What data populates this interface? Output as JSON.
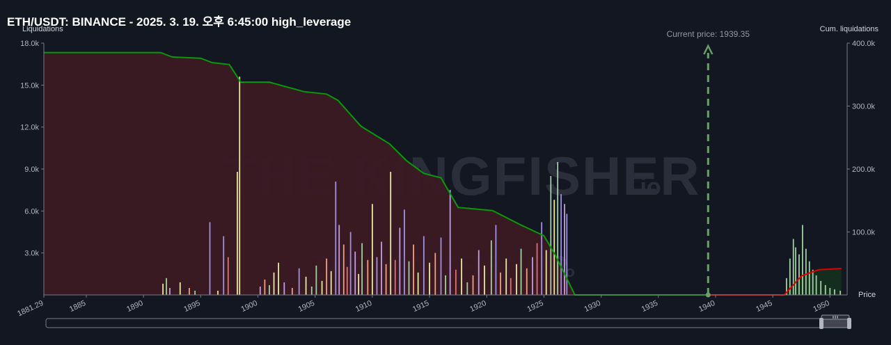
{
  "title": "ETH/USDT: BINANCE - 2025. 3. 19. 오후 6:45:00 high_leverage",
  "watermark": {
    "brand": "THE KINGFISHER",
    "suffix": ".io"
  },
  "chart_data": {
    "type": "bar",
    "ylabel_left": "Liquidations",
    "ylabel_right": "Cum. liquidations",
    "xlabel": "Price",
    "xlim": [
      1881.29,
      1951.5
    ],
    "ylim_left": [
      0,
      18000
    ],
    "ylim_right": [
      0,
      400000
    ],
    "y_ticks_left": [
      "3.0k",
      "6.0k",
      "9.0k",
      "12.0k",
      "15.0k",
      "18.0k"
    ],
    "y_ticks_right": [
      "100.0k",
      "200.0k",
      "300.0k",
      "400.0k"
    ],
    "x_ticks": [
      "1881.29",
      "1885",
      "1890",
      "1895",
      "1900",
      "1905",
      "1910",
      "1915",
      "1920",
      "1925",
      "1930",
      "1935",
      "1940",
      "1945",
      "1950"
    ],
    "current_price": {
      "label": "Current price: 1939.35",
      "value": 1939.35
    },
    "grid": false,
    "colors": {
      "short_line": "#089a08",
      "long_line": "#e00000",
      "short_fill": "#3b1a24",
      "long_fill": "#16301e",
      "current_price": "#6b9e6b"
    },
    "cum_short_line": [
      [
        1881.3,
        385000
      ],
      [
        1891.5,
        385000
      ],
      [
        1892.5,
        378000
      ],
      [
        1895.0,
        376000
      ],
      [
        1896.0,
        369000
      ],
      [
        1897.5,
        366000
      ],
      [
        1898.5,
        338000
      ],
      [
        1901.0,
        338000
      ],
      [
        1904.0,
        323000
      ],
      [
        1906.0,
        319000
      ],
      [
        1907.0,
        309000
      ],
      [
        1909.0,
        268000
      ],
      [
        1911.5,
        240000
      ],
      [
        1913.0,
        213000
      ],
      [
        1914.5,
        193000
      ],
      [
        1916.0,
        186000
      ],
      [
        1917.5,
        139000
      ],
      [
        1920.5,
        134000
      ],
      [
        1923.0,
        111000
      ],
      [
        1925.0,
        94000
      ],
      [
        1926.0,
        63000
      ],
      [
        1927.0,
        26000
      ],
      [
        1927.7,
        0
      ],
      [
        1939.35,
        0
      ]
    ],
    "cum_long_line": [
      [
        1939.35,
        0
      ],
      [
        1946.0,
        0
      ],
      [
        1947.5,
        30000
      ],
      [
        1949.0,
        40000
      ],
      [
        1951.0,
        42000
      ]
    ],
    "bars": [
      {
        "x": 1891.7,
        "y": 800,
        "c": "#e8e8a0"
      },
      {
        "x": 1892.0,
        "y": 1200,
        "c": "#a0d0a0"
      },
      {
        "x": 1892.3,
        "y": 500,
        "c": "#c0a0e0"
      },
      {
        "x": 1893.2,
        "y": 900,
        "c": "#e8e8a0"
      },
      {
        "x": 1894.0,
        "y": 500,
        "c": "#f0a080"
      },
      {
        "x": 1894.5,
        "y": 300,
        "c": "#a0d0a0"
      },
      {
        "x": 1895.8,
        "y": 5200,
        "c": "#a090e0"
      },
      {
        "x": 1896.5,
        "y": 300,
        "c": "#e8e8a0"
      },
      {
        "x": 1897.0,
        "y": 4200,
        "c": "#a090e0"
      },
      {
        "x": 1897.4,
        "y": 2700,
        "c": "#e07070"
      },
      {
        "x": 1898.2,
        "y": 8800,
        "c": "#e8e8a0"
      },
      {
        "x": 1898.4,
        "y": 15600,
        "c": "#e8e8a0"
      },
      {
        "x": 1900.2,
        "y": 600,
        "c": "#c0a0e0"
      },
      {
        "x": 1900.6,
        "y": 1100,
        "c": "#f0a080"
      },
      {
        "x": 1901.0,
        "y": 700,
        "c": "#a0d0a0"
      },
      {
        "x": 1901.4,
        "y": 1600,
        "c": "#e8e8a0"
      },
      {
        "x": 1901.8,
        "y": 2300,
        "c": "#e8e8a0"
      },
      {
        "x": 1902.3,
        "y": 900,
        "c": "#c0a0e0"
      },
      {
        "x": 1903.0,
        "y": 500,
        "c": "#f0a080"
      },
      {
        "x": 1903.6,
        "y": 1900,
        "c": "#a090e0"
      },
      {
        "x": 1904.2,
        "y": 1300,
        "c": "#e8e8a0"
      },
      {
        "x": 1904.7,
        "y": 600,
        "c": "#a0d0a0"
      },
      {
        "x": 1905.1,
        "y": 2100,
        "c": "#a0d0a0"
      },
      {
        "x": 1905.6,
        "y": 1000,
        "c": "#e8e8a0"
      },
      {
        "x": 1906.0,
        "y": 2600,
        "c": "#f0a080"
      },
      {
        "x": 1906.4,
        "y": 1700,
        "c": "#e8e8a0"
      },
      {
        "x": 1906.8,
        "y": 8100,
        "c": "#a090e0"
      },
      {
        "x": 1907.1,
        "y": 5000,
        "c": "#c0a0e0"
      },
      {
        "x": 1907.5,
        "y": 3600,
        "c": "#f0a080"
      },
      {
        "x": 1907.8,
        "y": 2000,
        "c": "#e07070"
      },
      {
        "x": 1908.1,
        "y": 4500,
        "c": "#a090e0"
      },
      {
        "x": 1908.5,
        "y": 3100,
        "c": "#c0a0e0"
      },
      {
        "x": 1908.8,
        "y": 1500,
        "c": "#e8e8a0"
      },
      {
        "x": 1909.1,
        "y": 3700,
        "c": "#a0d0a0"
      },
      {
        "x": 1909.6,
        "y": 2500,
        "c": "#f0a080"
      },
      {
        "x": 1910.0,
        "y": 6500,
        "c": "#e8e8a0"
      },
      {
        "x": 1910.4,
        "y": 2700,
        "c": "#a090e0"
      },
      {
        "x": 1910.8,
        "y": 3800,
        "c": "#c0a0e0"
      },
      {
        "x": 1911.2,
        "y": 2200,
        "c": "#f0a080"
      },
      {
        "x": 1911.6,
        "y": 8800,
        "c": "#e8e8a0"
      },
      {
        "x": 1912.0,
        "y": 2500,
        "c": "#e07070"
      },
      {
        "x": 1912.4,
        "y": 4800,
        "c": "#c0a0e0"
      },
      {
        "x": 1912.8,
        "y": 6100,
        "c": "#a090e0"
      },
      {
        "x": 1913.2,
        "y": 2400,
        "c": "#a0d0a0"
      },
      {
        "x": 1913.6,
        "y": 3600,
        "c": "#f0a080"
      },
      {
        "x": 1914.0,
        "y": 1600,
        "c": "#e8e8a0"
      },
      {
        "x": 1914.5,
        "y": 4200,
        "c": "#a090e0"
      },
      {
        "x": 1915.0,
        "y": 2300,
        "c": "#e8e8a0"
      },
      {
        "x": 1915.5,
        "y": 3000,
        "c": "#f0a080"
      },
      {
        "x": 1916.0,
        "y": 4100,
        "c": "#a090e0"
      },
      {
        "x": 1916.4,
        "y": 1400,
        "c": "#a0d0a0"
      },
      {
        "x": 1916.8,
        "y": 7500,
        "c": "#c0a0e0"
      },
      {
        "x": 1917.3,
        "y": 1800,
        "c": "#e07070"
      },
      {
        "x": 1917.8,
        "y": 2600,
        "c": "#e8e8a0"
      },
      {
        "x": 1918.3,
        "y": 900,
        "c": "#a0d0a0"
      },
      {
        "x": 1918.8,
        "y": 1400,
        "c": "#f0a080"
      },
      {
        "x": 1919.3,
        "y": 3200,
        "c": "#c0a0e0"
      },
      {
        "x": 1919.8,
        "y": 2100,
        "c": "#e8e8a0"
      },
      {
        "x": 1920.4,
        "y": 3900,
        "c": "#a0d0a0"
      },
      {
        "x": 1920.8,
        "y": 5000,
        "c": "#a090e0"
      },
      {
        "x": 1921.2,
        "y": 1600,
        "c": "#f0a080"
      },
      {
        "x": 1921.7,
        "y": 2600,
        "c": "#e8e8a0"
      },
      {
        "x": 1922.1,
        "y": 1200,
        "c": "#e07070"
      },
      {
        "x": 1922.6,
        "y": 2200,
        "c": "#e8e8a0"
      },
      {
        "x": 1923.0,
        "y": 3300,
        "c": "#a0d0a0"
      },
      {
        "x": 1923.5,
        "y": 1900,
        "c": "#f0a080"
      },
      {
        "x": 1924.0,
        "y": 2700,
        "c": "#c0a0e0"
      },
      {
        "x": 1924.4,
        "y": 3700,
        "c": "#e07070"
      },
      {
        "x": 1924.8,
        "y": 5200,
        "c": "#a090e0"
      },
      {
        "x": 1925.2,
        "y": 3200,
        "c": "#e8e8a0"
      },
      {
        "x": 1925.6,
        "y": 8500,
        "c": "#a0d0a0"
      },
      {
        "x": 1925.9,
        "y": 6800,
        "c": "#e8e8a0"
      },
      {
        "x": 1926.2,
        "y": 9500,
        "c": "#a0d0a0"
      },
      {
        "x": 1926.5,
        "y": 7200,
        "c": "#a090e0"
      },
      {
        "x": 1926.8,
        "y": 6500,
        "c": "#c0a0e0"
      },
      {
        "x": 1927.0,
        "y": 5800,
        "c": "#a090e0"
      },
      {
        "x": 1946.2,
        "y": 1200,
        "c": "#a0d0a0"
      },
      {
        "x": 1946.5,
        "y": 2600,
        "c": "#a0d0a0"
      },
      {
        "x": 1946.8,
        "y": 4000,
        "c": "#a0d0a0"
      },
      {
        "x": 1947.0,
        "y": 3400,
        "c": "#a0d0a0"
      },
      {
        "x": 1947.3,
        "y": 2900,
        "c": "#a0d0a0"
      },
      {
        "x": 1947.6,
        "y": 5000,
        "c": "#a0d0a0"
      },
      {
        "x": 1947.9,
        "y": 3300,
        "c": "#a0d0a0"
      },
      {
        "x": 1948.2,
        "y": 2400,
        "c": "#a0d0a0"
      },
      {
        "x": 1948.5,
        "y": 1800,
        "c": "#a0d0a0"
      },
      {
        "x": 1948.8,
        "y": 1400,
        "c": "#a0d0a0"
      },
      {
        "x": 1949.2,
        "y": 1000,
        "c": "#a0d0a0"
      },
      {
        "x": 1949.6,
        "y": 700,
        "c": "#a0d0a0"
      },
      {
        "x": 1950.0,
        "y": 500,
        "c": "#a0d0a0"
      },
      {
        "x": 1950.4,
        "y": 400,
        "c": "#a0d0a0"
      },
      {
        "x": 1950.9,
        "y": 300,
        "c": "#a0d0a0"
      }
    ]
  }
}
